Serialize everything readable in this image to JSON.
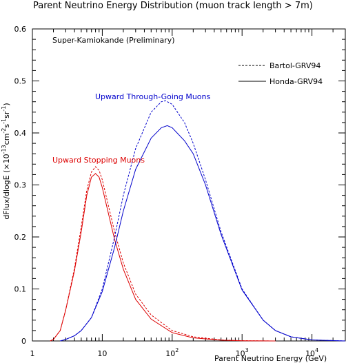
{
  "chart_data": {
    "type": "line",
    "title": "Parent Neutrino Energy Distribution (muon track length > 7m)",
    "subtitle": "Super-Kamiokande (Preliminary)",
    "xlabel": "Parent Neutrino Energy (GeV)",
    "ylabel_parts": [
      "dFlux/dlogE (×10",
      "-13",
      "cm",
      "-2",
      "s",
      "-1",
      "sr",
      "-1",
      ")"
    ],
    "x_scale": "log",
    "xlim": [
      1,
      30000
    ],
    "ylim": [
      0,
      0.6
    ],
    "x_ticks": [
      {
        "value": 1,
        "base": "1",
        "exp": ""
      },
      {
        "value": 10,
        "base": "10",
        "exp": ""
      },
      {
        "value": 100,
        "base": "10",
        "exp": "2"
      },
      {
        "value": 1000,
        "base": "10",
        "exp": "3"
      },
      {
        "value": 10000,
        "base": "10",
        "exp": "4"
      }
    ],
    "y_ticks": [
      "0",
      "0.1",
      "0.2",
      "0.3",
      "0.4",
      "0.5",
      "0.6"
    ],
    "legend": {
      "placement": "top-right",
      "entries": [
        {
          "label": "Bartol-GRV94",
          "style": "dashed"
        },
        {
          "label": "Honda-GRV94",
          "style": "solid"
        }
      ]
    },
    "annotations": [
      {
        "text": "Upward Through-Going Muons",
        "color": "#0000cc"
      },
      {
        "text": "Upward Stopping Muons",
        "color": "#dd0000"
      }
    ],
    "series": [
      {
        "group": "Upward Stopping Muons",
        "model": "Bartol-GRV94",
        "color": "#dd0000",
        "style": "dashed",
        "points": [
          [
            1.8,
            0.0
          ],
          [
            2,
            0.003
          ],
          [
            2.5,
            0.02
          ],
          [
            3,
            0.06
          ],
          [
            4,
            0.14
          ],
          [
            5,
            0.22
          ],
          [
            6,
            0.29
          ],
          [
            7,
            0.325
          ],
          [
            8,
            0.335
          ],
          [
            9,
            0.328
          ],
          [
            10,
            0.31
          ],
          [
            12,
            0.265
          ],
          [
            15,
            0.21
          ],
          [
            20,
            0.15
          ],
          [
            30,
            0.09
          ],
          [
            50,
            0.05
          ],
          [
            100,
            0.02
          ],
          [
            200,
            0.008
          ],
          [
            500,
            0.002
          ],
          [
            1000,
            0.0005
          ],
          [
            3000,
            0.0
          ]
        ]
      },
      {
        "group": "Upward Stopping Muons",
        "model": "Honda-GRV94",
        "color": "#dd0000",
        "style": "solid",
        "points": [
          [
            1.8,
            0.0
          ],
          [
            2,
            0.003
          ],
          [
            2.5,
            0.02
          ],
          [
            3,
            0.06
          ],
          [
            4,
            0.135
          ],
          [
            5,
            0.21
          ],
          [
            6,
            0.28
          ],
          [
            7,
            0.315
          ],
          [
            8,
            0.322
          ],
          [
            9,
            0.315
          ],
          [
            10,
            0.295
          ],
          [
            12,
            0.25
          ],
          [
            15,
            0.195
          ],
          [
            20,
            0.138
          ],
          [
            30,
            0.08
          ],
          [
            50,
            0.042
          ],
          [
            100,
            0.016
          ],
          [
            200,
            0.006
          ],
          [
            500,
            0.0015
          ],
          [
            1000,
            0.0004
          ],
          [
            3000,
            0.0
          ]
        ]
      },
      {
        "group": "Upward Through-Going Muons",
        "model": "Bartol-GRV94",
        "color": "#0000cc",
        "style": "dashed",
        "points": [
          [
            2.5,
            0.0
          ],
          [
            3,
            0.003
          ],
          [
            4,
            0.01
          ],
          [
            5,
            0.02
          ],
          [
            7,
            0.045
          ],
          [
            10,
            0.1
          ],
          [
            15,
            0.2
          ],
          [
            20,
            0.28
          ],
          [
            30,
            0.37
          ],
          [
            50,
            0.44
          ],
          [
            70,
            0.46
          ],
          [
            80,
            0.462
          ],
          [
            100,
            0.455
          ],
          [
            150,
            0.42
          ],
          [
            200,
            0.38
          ],
          [
            300,
            0.31
          ],
          [
            500,
            0.21
          ],
          [
            1000,
            0.1
          ],
          [
            2000,
            0.04
          ],
          [
            3000,
            0.02
          ],
          [
            5000,
            0.008
          ],
          [
            10000,
            0.002
          ],
          [
            30000,
            0.0
          ]
        ]
      },
      {
        "group": "Upward Through-Going Muons",
        "model": "Honda-GRV94",
        "color": "#0000cc",
        "style": "solid",
        "points": [
          [
            2.5,
            0.0
          ],
          [
            3,
            0.003
          ],
          [
            4,
            0.01
          ],
          [
            5,
            0.02
          ],
          [
            7,
            0.045
          ],
          [
            10,
            0.095
          ],
          [
            15,
            0.18
          ],
          [
            20,
            0.25
          ],
          [
            30,
            0.33
          ],
          [
            50,
            0.39
          ],
          [
            70,
            0.41
          ],
          [
            85,
            0.414
          ],
          [
            100,
            0.41
          ],
          [
            150,
            0.385
          ],
          [
            200,
            0.36
          ],
          [
            300,
            0.3
          ],
          [
            500,
            0.205
          ],
          [
            1000,
            0.098
          ],
          [
            2000,
            0.04
          ],
          [
            3000,
            0.02
          ],
          [
            5000,
            0.008
          ],
          [
            10000,
            0.002
          ],
          [
            30000,
            0.0
          ]
        ]
      }
    ]
  }
}
